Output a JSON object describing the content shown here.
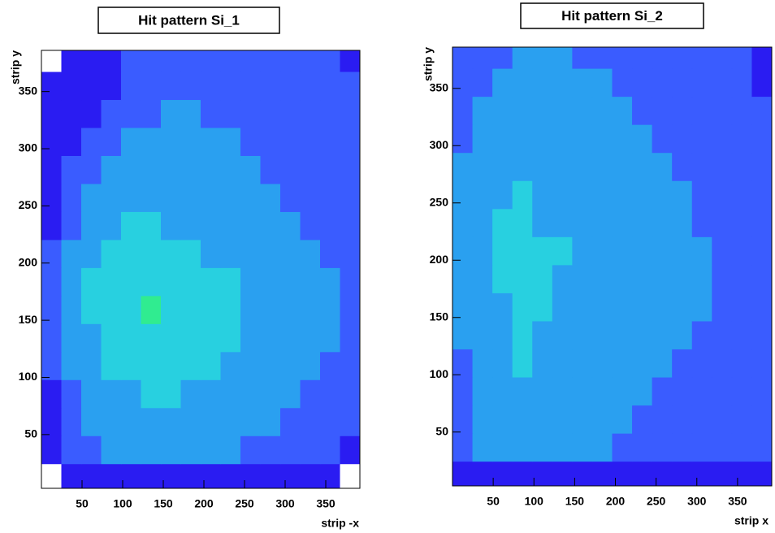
{
  "chart_data": [
    {
      "type": "heatmap",
      "title": "Hit pattern Si_1",
      "xlabel": "strip -x",
      "ylabel": "strip y",
      "xlim": [
        0,
        392
      ],
      "ylim": [
        3,
        386
      ],
      "xticks": [
        50,
        100,
        150,
        200,
        250,
        300,
        350
      ],
      "yticks": [
        50,
        100,
        150,
        200,
        250,
        300,
        350
      ],
      "xbins": [
        0,
        24.5,
        49,
        73.5,
        98,
        122.5,
        147,
        171.5,
        196,
        220.5,
        245,
        269.5,
        294,
        318.5,
        343,
        367.5,
        392
      ],
      "ybins": [
        0,
        24.5,
        49,
        73.5,
        98,
        122.5,
        147,
        171.5,
        196,
        220.5,
        245,
        269.5,
        294,
        318.5,
        343,
        367.5,
        392
      ],
      "palette": [
        "#ffffff",
        "#2a1cf2",
        "#3a5cff",
        "#2aa0f0",
        "#28d0e0",
        "#30ec90"
      ],
      "z": [
        [
          0,
          1,
          1,
          1,
          1,
          1,
          1,
          1,
          1,
          1,
          1,
          1,
          1,
          1,
          1,
          0
        ],
        [
          1,
          2,
          2,
          3,
          3,
          3,
          3,
          3,
          3,
          3,
          2,
          2,
          2,
          2,
          2,
          1
        ],
        [
          1,
          2,
          3,
          3,
          3,
          3,
          3,
          3,
          3,
          3,
          3,
          3,
          2,
          2,
          2,
          2
        ],
        [
          1,
          2,
          3,
          3,
          3,
          4,
          4,
          3,
          3,
          3,
          3,
          3,
          3,
          2,
          2,
          2
        ],
        [
          2,
          3,
          3,
          4,
          4,
          4,
          4,
          4,
          4,
          3,
          3,
          3,
          3,
          3,
          2,
          2
        ],
        [
          2,
          3,
          3,
          4,
          4,
          4,
          4,
          4,
          4,
          4,
          3,
          3,
          3,
          3,
          3,
          2
        ],
        [
          2,
          3,
          4,
          4,
          4,
          5,
          4,
          4,
          4,
          4,
          3,
          3,
          3,
          3,
          3,
          2
        ],
        [
          2,
          3,
          4,
          4,
          4,
          4,
          4,
          4,
          4,
          4,
          3,
          3,
          3,
          3,
          3,
          2
        ],
        [
          2,
          3,
          3,
          4,
          4,
          4,
          4,
          4,
          3,
          3,
          3,
          3,
          3,
          3,
          2,
          2
        ],
        [
          1,
          2,
          3,
          3,
          4,
          4,
          3,
          3,
          3,
          3,
          3,
          3,
          3,
          2,
          2,
          2
        ],
        [
          1,
          2,
          3,
          3,
          3,
          3,
          3,
          3,
          3,
          3,
          3,
          3,
          2,
          2,
          2,
          2
        ],
        [
          1,
          2,
          2,
          3,
          3,
          3,
          3,
          3,
          3,
          3,
          3,
          2,
          2,
          2,
          2,
          2
        ],
        [
          1,
          1,
          2,
          2,
          3,
          3,
          3,
          3,
          3,
          3,
          2,
          2,
          2,
          2,
          2,
          2
        ],
        [
          1,
          1,
          1,
          2,
          2,
          2,
          3,
          3,
          2,
          2,
          2,
          2,
          2,
          2,
          2,
          2
        ],
        [
          1,
          1,
          1,
          1,
          2,
          2,
          2,
          2,
          2,
          2,
          2,
          2,
          2,
          2,
          2,
          2
        ],
        [
          0,
          1,
          1,
          1,
          2,
          2,
          2,
          2,
          2,
          2,
          2,
          2,
          2,
          2,
          2,
          1
        ]
      ]
    },
    {
      "type": "heatmap",
      "title": "Hit pattern Si_2",
      "xlabel": "strip x",
      "ylabel": "strip y",
      "xlim": [
        0,
        392
      ],
      "ylim": [
        3,
        386
      ],
      "xticks": [
        50,
        100,
        150,
        200,
        250,
        300,
        350
      ],
      "yticks": [
        50,
        100,
        150,
        200,
        250,
        300,
        350
      ],
      "xbins": [
        0,
        24.5,
        49,
        73.5,
        98,
        122.5,
        147,
        171.5,
        196,
        220.5,
        245,
        269.5,
        294,
        318.5,
        343,
        367.5,
        392
      ],
      "ybins": [
        0,
        24.5,
        49,
        73.5,
        98,
        122.5,
        147,
        171.5,
        196,
        220.5,
        245,
        269.5,
        294,
        318.5,
        343,
        367.5,
        392
      ],
      "palette": [
        "#ffffff",
        "#2a1cf2",
        "#3a5cff",
        "#2aa0f0",
        "#28d0e0",
        "#30ec90"
      ],
      "z": [
        [
          1,
          1,
          1,
          1,
          1,
          1,
          1,
          1,
          1,
          1,
          1,
          1,
          1,
          1,
          1,
          1
        ],
        [
          2,
          3,
          3,
          3,
          3,
          3,
          3,
          3,
          2,
          2,
          2,
          2,
          2,
          2,
          2,
          2
        ],
        [
          2,
          3,
          3,
          3,
          3,
          3,
          3,
          3,
          3,
          2,
          2,
          2,
          2,
          2,
          2,
          2
        ],
        [
          2,
          3,
          3,
          3,
          3,
          3,
          3,
          3,
          3,
          3,
          2,
          2,
          2,
          2,
          2,
          2
        ],
        [
          2,
          3,
          3,
          4,
          3,
          3,
          3,
          3,
          3,
          3,
          3,
          2,
          2,
          2,
          2,
          2
        ],
        [
          3,
          3,
          3,
          4,
          3,
          3,
          3,
          3,
          3,
          3,
          3,
          3,
          2,
          2,
          2,
          2
        ],
        [
          3,
          3,
          3,
          4,
          4,
          3,
          3,
          3,
          3,
          3,
          3,
          3,
          3,
          2,
          2,
          2
        ],
        [
          3,
          3,
          4,
          4,
          4,
          3,
          3,
          3,
          3,
          3,
          3,
          3,
          3,
          2,
          2,
          2
        ],
        [
          3,
          3,
          4,
          4,
          4,
          4,
          3,
          3,
          3,
          3,
          3,
          3,
          3,
          2,
          2,
          2
        ],
        [
          3,
          3,
          4,
          4,
          3,
          3,
          3,
          3,
          3,
          3,
          3,
          3,
          2,
          2,
          2,
          2
        ],
        [
          3,
          3,
          3,
          4,
          3,
          3,
          3,
          3,
          3,
          3,
          3,
          3,
          2,
          2,
          2,
          2
        ],
        [
          3,
          3,
          3,
          3,
          3,
          3,
          3,
          3,
          3,
          3,
          3,
          2,
          2,
          2,
          2,
          2
        ],
        [
          2,
          3,
          3,
          3,
          3,
          3,
          3,
          3,
          3,
          3,
          2,
          2,
          2,
          2,
          2,
          2
        ],
        [
          2,
          3,
          3,
          3,
          3,
          3,
          3,
          3,
          3,
          2,
          2,
          2,
          2,
          2,
          2,
          2
        ],
        [
          2,
          2,
          3,
          3,
          3,
          3,
          3,
          3,
          2,
          2,
          2,
          2,
          2,
          2,
          2,
          1
        ],
        [
          2,
          2,
          2,
          3,
          3,
          3,
          2,
          2,
          2,
          2,
          2,
          2,
          2,
          2,
          2,
          1
        ]
      ]
    }
  ]
}
